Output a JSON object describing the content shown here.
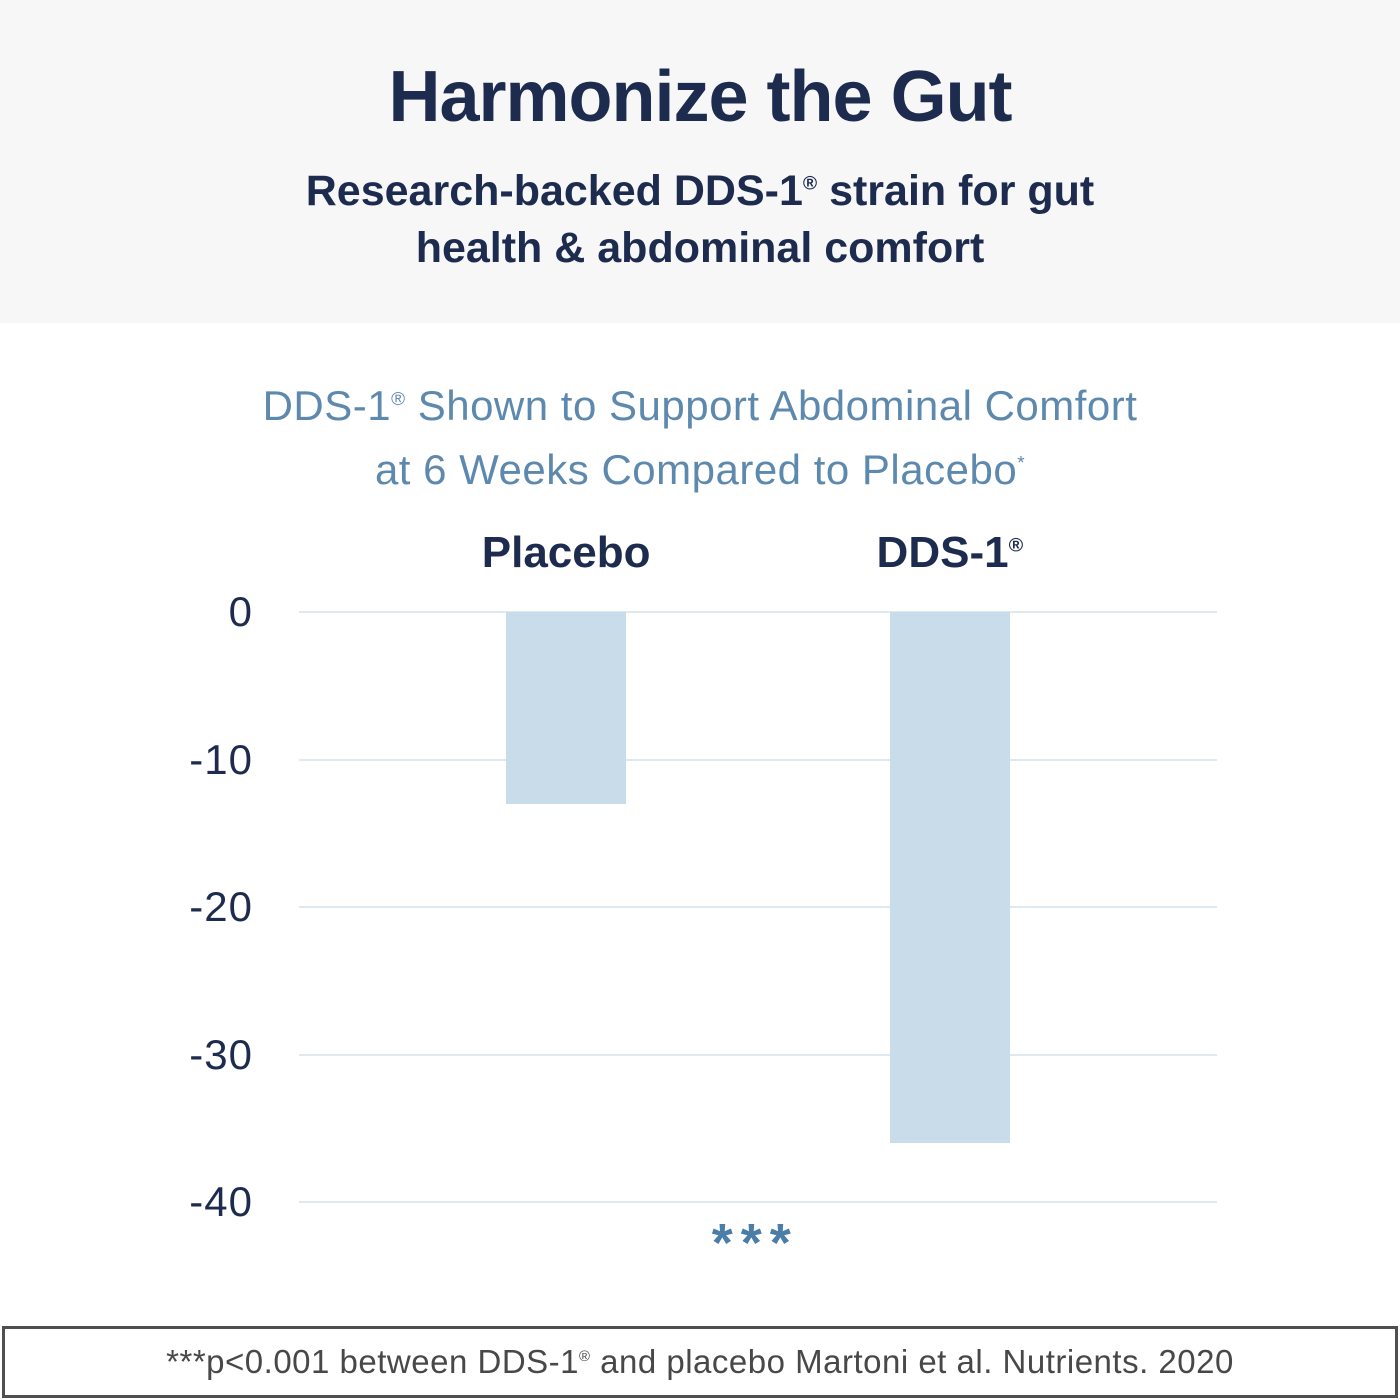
{
  "header": {
    "title": "Harmonize the Gut",
    "subtitle_line1_pre": "Research-backed DDS-1",
    "subtitle_line1_sup": "®",
    "subtitle_line1_post": " strain for gut",
    "subtitle_line2": "health & abdominal comfort"
  },
  "chart": {
    "title_line1_pre": "DDS-1",
    "title_line1_sup": "®",
    "title_line1_post": " Shown to Support Abdominal Comfort",
    "title_line2": "at 6 Weeks Compared to Placebo",
    "title_line2_sup": "*",
    "col_placebo": "Placebo",
    "col_dds1_pre": "DDS-1",
    "col_dds1_sup": "®"
  },
  "chart_data": {
    "type": "bar",
    "categories": [
      "Placebo",
      "DDS-1®"
    ],
    "values": [
      -13,
      -36
    ],
    "title": "DDS-1® Shown to Support Abdominal Comfort at 6 Weeks Compared to Placebo*",
    "xlabel": "",
    "ylabel": "",
    "ylim": [
      -40,
      0
    ],
    "yticks": [
      0,
      -10,
      -20,
      -30,
      -40
    ],
    "grid": true,
    "legend": "none",
    "annotation": "***"
  },
  "footnote": {
    "pre": "***p<0.001 between DDS-1",
    "sup": "®",
    "post": " and placebo Martoni et al. Nutrients. 2020"
  },
  "colors": {
    "navy": "#1d2c4e",
    "steel-blue": "#5e89ae",
    "stars-blue": "#4a7da8",
    "bar-fill": "#c9dcea",
    "gridline": "#dfe9f2",
    "header-bg": "#f7f7f8",
    "footer-text": "#484848",
    "footer-border": "#4f4f4f",
    "background": "#ffffff"
  }
}
